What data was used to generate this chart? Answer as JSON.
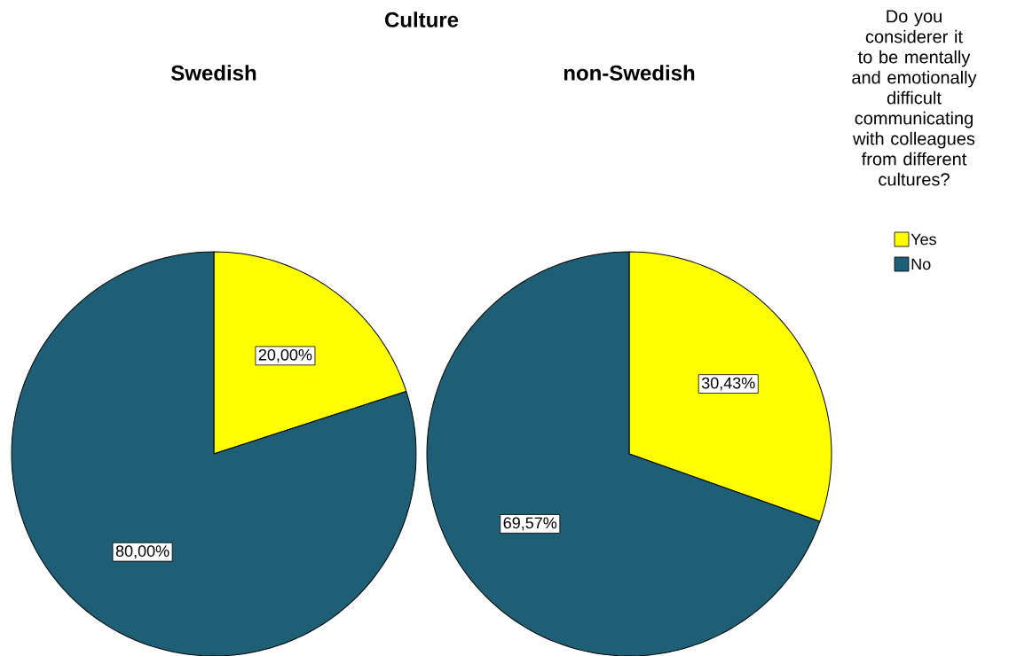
{
  "chart_data": [
    {
      "type": "pie",
      "title": "Swedish",
      "annotations": [
        "Culture"
      ],
      "categories": [
        null,
        null
      ],
      "values": [
        20.0,
        80.0
      ],
      "colors": [
        "#ffff00",
        "#1f5f75"
      ],
      "value_labels": [
        "20,00%",
        "80,00%"
      ]
    },
    {
      "type": "pie",
      "title": "non-Swedish",
      "categories": [
        "Yes",
        "No"
      ],
      "values": [
        30.43,
        69.57
      ],
      "colors": [
        "#ffff00",
        "#1f5f75"
      ],
      "value_labels": [
        "30,43%",
        "69,57%"
      ],
      "legend": "top right",
      "legend_title": "Do you considerer it to be mentally and emotionally difficult communicating with colleagues from different cultures?"
    }
  ]
}
